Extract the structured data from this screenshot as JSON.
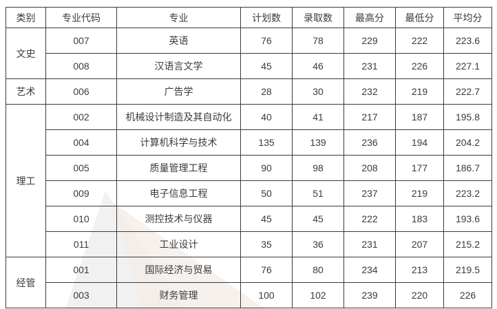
{
  "table": {
    "columns": [
      "类别",
      "专业代码",
      "专业",
      "计划数",
      "录取数",
      "最高分",
      "最低分",
      "平均分"
    ],
    "groups": [
      {
        "category": "文史",
        "rows": [
          [
            "007",
            "英语",
            "76",
            "78",
            "229",
            "222",
            "223.6"
          ],
          [
            "008",
            "汉语言文学",
            "45",
            "46",
            "231",
            "226",
            "227.1"
          ]
        ]
      },
      {
        "category": "艺术",
        "rows": [
          [
            "006",
            "广告学",
            "28",
            "30",
            "232",
            "219",
            "222.7"
          ]
        ]
      },
      {
        "category": "理工",
        "rows": [
          [
            "002",
            "机械设计制造及其自动化",
            "40",
            "41",
            "217",
            "187",
            "195.8"
          ],
          [
            "004",
            "计算机科学与技术",
            "135",
            "139",
            "236",
            "194",
            "204.2"
          ],
          [
            "005",
            "质量管理工程",
            "90",
            "98",
            "208",
            "177",
            "186.7"
          ],
          [
            "009",
            "电子信息工程",
            "50",
            "51",
            "237",
            "219",
            "223.2"
          ],
          [
            "010",
            "测控技术与仪器",
            "45",
            "45",
            "222",
            "183",
            "193.6"
          ],
          [
            "011",
            "工业设计",
            "35",
            "36",
            "231",
            "207",
            "215.2"
          ]
        ]
      },
      {
        "category": "经管",
        "rows": [
          [
            "001",
            "国际经济与贸易",
            "76",
            "80",
            "234",
            "213",
            "219.5"
          ],
          [
            "003",
            "财务管理",
            "100",
            "102",
            "239",
            "220",
            "226"
          ]
        ]
      }
    ],
    "colors": {
      "border": "#3a3a3a",
      "text": "#3b3b3b",
      "background": "#ffffff",
      "watermark_gray": "#ececec",
      "watermark_warm": "#f4eee9"
    }
  }
}
